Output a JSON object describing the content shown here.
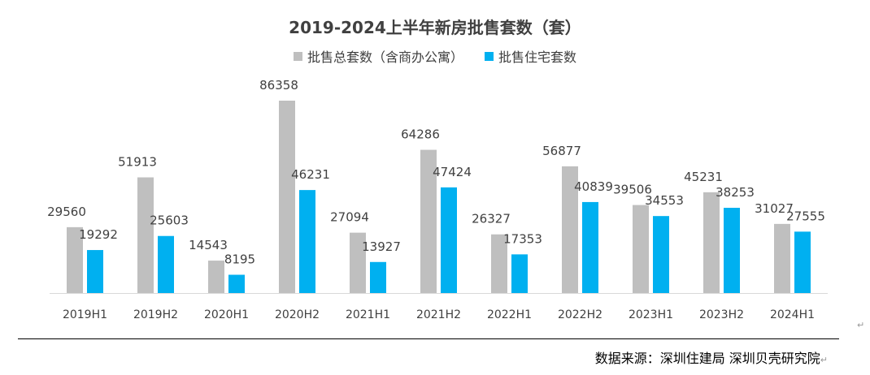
{
  "chart_data": {
    "type": "bar",
    "title": "2019-2024上半年新房批售套数（套）",
    "categories": [
      "2019H1",
      "2019H2",
      "2020H1",
      "2020H2",
      "2021H1",
      "2021H2",
      "2022H1",
      "2022H2",
      "2023H1",
      "2023H2",
      "2024H1"
    ],
    "series": [
      {
        "name": "批售总套数（含商办公寓）",
        "color": "#BFBFBF",
        "values": [
          29560,
          51913,
          14543,
          86358,
          27094,
          64286,
          26327,
          56877,
          39506,
          45231,
          31027
        ]
      },
      {
        "name": "批售住宅套数",
        "color": "#00B0F0",
        "values": [
          19292,
          25603,
          8195,
          46231,
          13927,
          47424,
          17353,
          40839,
          34553,
          38253,
          27555
        ]
      }
    ],
    "ylim": [
      0,
      86358
    ],
    "grid": false,
    "legend_position": "top",
    "data_labels": true
  },
  "footer": {
    "source": "数据来源：深圳住建局  深圳贝壳研究院",
    "return_mark": "↵"
  }
}
